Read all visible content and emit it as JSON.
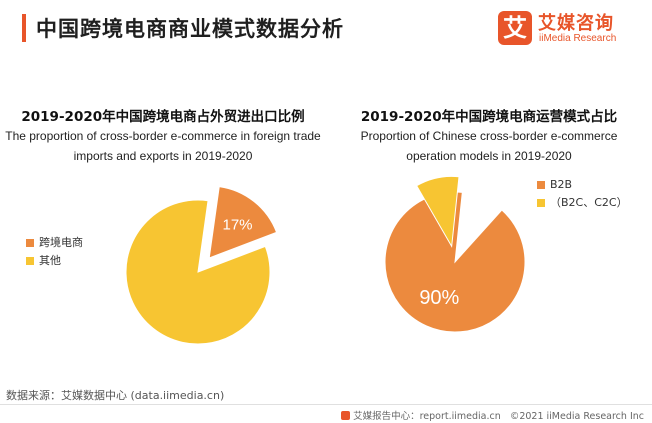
{
  "header": {
    "title": "中国跨境电商商业模式数据分析",
    "accent_color": "#e8552a"
  },
  "logo": {
    "mark": "艾",
    "name_cn": "艾媒咨询",
    "name_en": "iiMedia Research"
  },
  "chart_data": [
    {
      "type": "pie",
      "title": "2019-2020年中国跨境电商占外贸进出口比例",
      "subtitle_lines": [
        "The proportion of cross-border e-commerce in foreign trade",
        "imports and exports in 2019-2020"
      ],
      "labels": [
        "跨境电商",
        "其他"
      ],
      "values": [
        17,
        83
      ],
      "data_labels": [
        "17%",
        ""
      ],
      "colors": [
        "#ec8a3e",
        "#f7c532"
      ],
      "exploded": [
        true,
        false
      ],
      "legend_position": "left"
    },
    {
      "type": "pie",
      "title": "2019-2020年中国跨境电商运营模式占比",
      "subtitle_lines": [
        "Proportion of Chinese cross-border e-commerce",
        "operation models in 2019-2020"
      ],
      "labels": [
        "B2B",
        "（B2C、C2C）"
      ],
      "values": [
        90,
        10
      ],
      "data_labels": [
        "90%",
        ""
      ],
      "colors": [
        "#ec8a3e",
        "#f7c532"
      ],
      "exploded": [
        false,
        true
      ],
      "legend_position": "right"
    }
  ],
  "footer": {
    "source": "数据来源：艾媒数据中心 (data.iimedia.cn)",
    "report": "艾媒报告中心：report.iimedia.cn",
    "copyright": "©2021  iiMedia Research  Inc"
  }
}
